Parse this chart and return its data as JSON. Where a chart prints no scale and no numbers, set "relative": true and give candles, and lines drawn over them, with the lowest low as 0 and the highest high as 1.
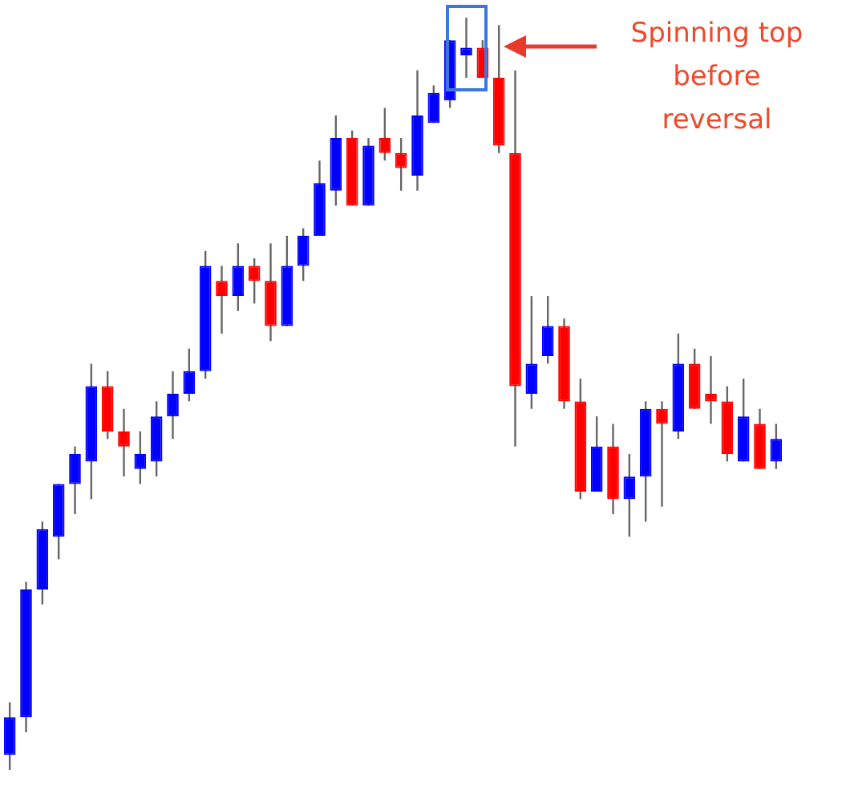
{
  "chart_data": {
    "type": "candlestick",
    "relative": true,
    "categories": [
      null,
      null,
      null,
      null,
      null,
      null,
      null,
      null,
      null,
      null,
      null,
      null,
      null,
      null,
      null,
      null,
      null,
      null,
      null,
      null,
      null,
      null,
      null,
      null,
      null,
      null,
      null,
      null,
      null,
      null,
      null,
      null,
      null,
      null,
      null,
      null,
      null,
      null,
      null,
      null,
      null,
      null,
      null,
      null,
      null,
      null,
      null,
      null
    ],
    "ohlc": [
      [
        0.02,
        0.09,
        0,
        0.07
      ],
      [
        0.07,
        0.25,
        0.05,
        0.24
      ],
      [
        0.24,
        0.33,
        0.22,
        0.32
      ],
      [
        0.31,
        0.38,
        0.28,
        0.38
      ],
      [
        0.38,
        0.43,
        0.34,
        0.42
      ],
      [
        0.41,
        0.54,
        0.36,
        0.51
      ],
      [
        0.51,
        0.53,
        0.44,
        0.45
      ],
      [
        0.45,
        0.48,
        0.39,
        0.43
      ],
      [
        0.4,
        0.45,
        0.38,
        0.42
      ],
      [
        0.41,
        0.49,
        0.39,
        0.47
      ],
      [
        0.47,
        0.53,
        0.44,
        0.5
      ],
      [
        0.5,
        0.56,
        0.49,
        0.53
      ],
      [
        0.53,
        0.69,
        0.52,
        0.67
      ],
      [
        0.65,
        0.67,
        0.58,
        0.63
      ],
      [
        0.63,
        0.7,
        0.61,
        0.67
      ],
      [
        0.67,
        0.68,
        0.62,
        0.65
      ],
      [
        0.65,
        0.7,
        0.57,
        0.59
      ],
      [
        0.59,
        0.71,
        0.59,
        0.67
      ],
      [
        0.67,
        0.72,
        0.65,
        0.71
      ],
      [
        0.71,
        0.81,
        0.71,
        0.78
      ],
      [
        0.77,
        0.87,
        0.75,
        0.84
      ],
      [
        0.84,
        0.85,
        0.75,
        0.75
      ],
      [
        0.75,
        0.84,
        0.75,
        0.83
      ],
      [
        0.84,
        0.88,
        0.81,
        0.82
      ],
      [
        0.82,
        0.84,
        0.77,
        0.8
      ],
      [
        0.79,
        0.93,
        0.77,
        0.87
      ],
      [
        0.86,
        0.91,
        0.86,
        0.9
      ],
      [
        0.89,
        0.97,
        0.88,
        0.97
      ],
      [
        0.95,
        1,
        0.92,
        0.96
      ],
      [
        0.96,
        0.97,
        0.92,
        0.92
      ],
      [
        0.92,
        0.99,
        0.82,
        0.83
      ],
      [
        0.82,
        0.93,
        0.43,
        0.51
      ],
      [
        0.5,
        0.63,
        0.48,
        0.54
      ],
      [
        0.55,
        0.63,
        0.54,
        0.59
      ],
      [
        0.59,
        0.6,
        0.48,
        0.49
      ],
      [
        0.49,
        0.52,
        0.36,
        0.37
      ],
      [
        0.37,
        0.47,
        0.37,
        0.43
      ],
      [
        0.43,
        0.46,
        0.34,
        0.36
      ],
      [
        0.36,
        0.42,
        0.31,
        0.39
      ],
      [
        0.39,
        0.49,
        0.33,
        0.48
      ],
      [
        0.48,
        0.49,
        0.35,
        0.46
      ],
      [
        0.45,
        0.58,
        0.44,
        0.54
      ],
      [
        0.54,
        0.56,
        0.48,
        0.48
      ],
      [
        0.5,
        0.55,
        0.46,
        0.49
      ],
      [
        0.49,
        0.51,
        0.41,
        0.42
      ],
      [
        0.41,
        0.52,
        0.41,
        0.47
      ],
      [
        0.46,
        0.48,
        0.4,
        0.4
      ],
      [
        0.41,
        0.46,
        0.4,
        0.44
      ]
    ],
    "colors": [
      "#0000ff",
      "#0000ff",
      "#0000ff",
      "#0000ff",
      "#0000ff",
      "#0000ff",
      "#ff0000",
      "#ff0000",
      "#0000ff",
      "#0000ff",
      "#0000ff",
      "#0000ff",
      "#0000ff",
      "#ff0000",
      "#0000ff",
      "#ff0000",
      "#ff0000",
      "#0000ff",
      "#0000ff",
      "#0000ff",
      "#0000ff",
      "#ff0000",
      "#0000ff",
      "#ff0000",
      "#ff0000",
      "#0000ff",
      "#0000ff",
      "#0000ff",
      "#0000ff",
      "#ff0000",
      "#ff0000",
      "#ff0000",
      "#0000ff",
      "#0000ff",
      "#ff0000",
      "#ff0000",
      "#0000ff",
      "#ff0000",
      "#0000ff",
      "#0000ff",
      "#ff0000",
      "#0000ff",
      "#ff0000",
      "#ff0000",
      "#ff0000",
      "#0000ff",
      "#ff0000",
      "#0000ff"
    ],
    "annotations": [
      "Spinning top before reversal"
    ]
  }
}
